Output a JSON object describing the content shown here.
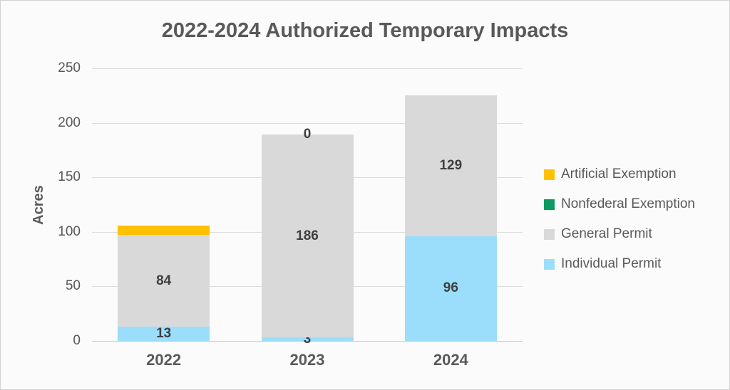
{
  "chart_data": {
    "type": "bar",
    "stacked": true,
    "title": "2022-2024 Authorized Temporary Impacts",
    "xlabel": "",
    "ylabel": "Acres",
    "categories": [
      "2022",
      "2023",
      "2024"
    ],
    "series": [
      {
        "name": "Individual Permit",
        "color": "#9ADEFB",
        "values": [
          13,
          3,
          96
        ],
        "labels": [
          "13",
          "3",
          "96"
        ]
      },
      {
        "name": "General Permit",
        "color": "#D9D9D9",
        "values": [
          84,
          186,
          129
        ],
        "labels": [
          "84",
          "186",
          "129"
        ]
      },
      {
        "name": "Nonfederal Exemption",
        "color": "#0B9B61",
        "values": [
          0,
          0,
          0
        ],
        "labels": [
          "",
          "",
          ""
        ]
      },
      {
        "name": "Artificial Exemption",
        "color": "#FFC000",
        "values": [
          9,
          0,
          0
        ],
        "labels": [
          "",
          "0",
          ""
        ]
      }
    ],
    "ylim": [
      0,
      250
    ],
    "yticks": [
      0,
      50,
      100,
      150,
      200,
      250
    ],
    "grid": true,
    "legend_position": "right"
  },
  "legend": {
    "items": [
      {
        "label": "Artificial Exemption",
        "color": "#FFC000"
      },
      {
        "label": "Nonfederal Exemption",
        "color": "#0B9B61"
      },
      {
        "label": "General Permit",
        "color": "#D9D9D9"
      },
      {
        "label": "Individual Permit",
        "color": "#9ADEFB"
      }
    ]
  },
  "colors": {
    "background": "#FBFBFB",
    "frame_border": "#D2D2D2",
    "gridline": "#DCDCDC",
    "axis_text": "#595959",
    "bar_label_text": "#3F3F3F"
  }
}
